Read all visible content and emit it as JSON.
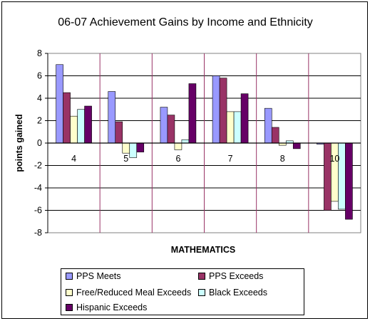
{
  "chart_data": {
    "type": "bar",
    "title": "06-07 Achievement Gains by Income and Ethnicity",
    "xlabel": "MATHEMATICS",
    "ylabel": "points gained",
    "ylim": [
      -8,
      8
    ],
    "yticks": [
      "8",
      "6",
      "4",
      "2",
      "0",
      "-2",
      "-4",
      "-6",
      "-8"
    ],
    "ytick_values": [
      8,
      6,
      4,
      2,
      0,
      -2,
      -4,
      -6,
      -8
    ],
    "categories": [
      "4",
      "5",
      "6",
      "7",
      "8",
      "10"
    ],
    "grid": true,
    "legend_position": "bottom",
    "series": [
      {
        "name": "PPS Meets",
        "color": "#9999ff",
        "values": [
          7.0,
          4.6,
          3.2,
          6.0,
          3.1,
          -0.1
        ]
      },
      {
        "name": "PPS Exceeds",
        "color": "#993366",
        "values": [
          4.5,
          1.9,
          2.5,
          5.8,
          1.4,
          -6.0
        ]
      },
      {
        "name": "Free/Reduced Meal Exceeds",
        "color": "#ffffcc",
        "values": [
          2.4,
          -0.9,
          -0.6,
          2.8,
          -0.2,
          -5.2
        ]
      },
      {
        "name": "Black Exceeds",
        "color": "#ccffff",
        "values": [
          3.0,
          -1.3,
          0.3,
          2.8,
          0.2,
          -5.9
        ]
      },
      {
        "name": "Hispanic Exceeds",
        "color": "#660066",
        "values": [
          3.3,
          -0.8,
          5.3,
          4.4,
          -0.5,
          -6.8
        ]
      }
    ]
  }
}
